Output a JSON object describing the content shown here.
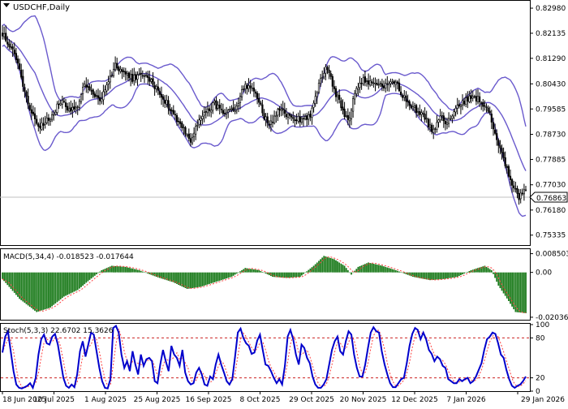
{
  "chart_data": [
    {
      "type": "candlestick",
      "title": "USDCHF,Daily",
      "symbol": "USDCHF",
      "timeframe": "Daily",
      "current_price": "0.76863",
      "ylim": [
        0.75,
        0.832
      ],
      "y_ticks": [
        "0.82980",
        "0.82135",
        "0.81290",
        "0.80430",
        "0.79585",
        "0.78730",
        "0.77885",
        "0.77030",
        "0.76180",
        "0.75335"
      ],
      "x_ticks": [
        "18 Jun 2025",
        "10 Jul 2025",
        "1 Aug 2025",
        "25 Aug 2025",
        "16 Sep 2025",
        "8 Oct 2025",
        "29 Oct 2025",
        "20 Nov 2025",
        "12 Dec 2025",
        "7 Jan 2026",
        "29 Jan 2026"
      ],
      "close_path": [
        [
          0,
          0.8215
        ],
        [
          8,
          0.813
        ],
        [
          16,
          0.796
        ],
        [
          22,
          0.7895
        ],
        [
          28,
          0.793
        ],
        [
          34,
          0.7985
        ],
        [
          40,
          0.7955
        ],
        [
          44,
          0.7975
        ],
        [
          48,
          0.804
        ],
        [
          52,
          0.801
        ],
        [
          58,
          0.799
        ],
        [
          62,
          0.8055
        ],
        [
          66,
          0.8105
        ],
        [
          70,
          0.8085
        ],
        [
          76,
          0.806
        ],
        [
          82,
          0.8075
        ],
        [
          88,
          0.8045
        ],
        [
          94,
          0.7995
        ],
        [
          100,
          0.7945
        ],
        [
          106,
          0.789
        ],
        [
          110,
          0.785
        ],
        [
          114,
          0.7905
        ],
        [
          118,
          0.7945
        ],
        [
          124,
          0.7975
        ],
        [
          130,
          0.7935
        ],
        [
          136,
          0.796
        ],
        [
          142,
          0.804
        ],
        [
          148,
          0.802
        ],
        [
          152,
          0.7945
        ],
        [
          156,
          0.7905
        ],
        [
          162,
          0.7955
        ],
        [
          168,
          0.793
        ],
        [
          174,
          0.7925
        ],
        [
          180,
          0.7935
        ],
        [
          186,
          0.806
        ],
        [
          190,
          0.81
        ],
        [
          194,
          0.8025
        ],
        [
          198,
          0.7965
        ],
        [
          202,
          0.7915
        ],
        [
          206,
          0.801
        ],
        [
          210,
          0.8055
        ],
        [
          216,
          0.8045
        ],
        [
          222,
          0.8035
        ],
        [
          226,
          0.804
        ],
        [
          230,
          0.8045
        ],
        [
          234,
          0.8005
        ],
        [
          240,
          0.7965
        ],
        [
          246,
          0.7935
        ],
        [
          252,
          0.788
        ],
        [
          256,
          0.7935
        ],
        [
          260,
          0.7905
        ],
        [
          264,
          0.795
        ],
        [
          270,
          0.7985
        ],
        [
          274,
          0.7995
        ],
        [
          278,
          0.7995
        ],
        [
          284,
          0.7955
        ],
        [
          290,
          0.7835
        ],
        [
          294,
          0.777
        ],
        [
          298,
          0.77
        ],
        [
          302,
          0.766
        ],
        [
          306,
          0.7686
        ]
      ],
      "bollinger": {
        "period": 20,
        "deviations": 2
      },
      "series": []
    },
    {
      "type": "histogram",
      "indicator": "MACD",
      "label": "MACD(5,34,4) -0.018523 -0.017644",
      "ylim": [
        -0.0215,
        0.0102
      ],
      "y_ticks": [
        "0.008503",
        "0.00",
        "-0.020366"
      ],
      "macd_path": [
        [
          0,
          -0.003
        ],
        [
          10,
          -0.012
        ],
        [
          20,
          -0.018
        ],
        [
          28,
          -0.016
        ],
        [
          36,
          -0.011
        ],
        [
          44,
          -0.008
        ],
        [
          50,
          -0.004
        ],
        [
          58,
          0.001
        ],
        [
          64,
          0.003
        ],
        [
          72,
          0.0025
        ],
        [
          80,
          0.001
        ],
        [
          90,
          -0.002
        ],
        [
          100,
          -0.0045
        ],
        [
          108,
          -0.0075
        ],
        [
          116,
          -0.0065
        ],
        [
          126,
          -0.004
        ],
        [
          134,
          -0.002
        ],
        [
          142,
          0.002
        ],
        [
          150,
          0.001
        ],
        [
          158,
          -0.002
        ],
        [
          166,
          -0.0025
        ],
        [
          174,
          -0.002
        ],
        [
          182,
          0.003
        ],
        [
          188,
          0.0075
        ],
        [
          194,
          0.006
        ],
        [
          200,
          0.003
        ],
        [
          204,
          -0.001
        ],
        [
          208,
          0.0025
        ],
        [
          214,
          0.0045
        ],
        [
          222,
          0.003
        ],
        [
          230,
          0.001
        ],
        [
          240,
          -0.002
        ],
        [
          250,
          -0.0035
        ],
        [
          258,
          -0.003
        ],
        [
          266,
          -0.002
        ],
        [
          274,
          0.001
        ],
        [
          282,
          0.003
        ],
        [
          286,
          0.001
        ],
        [
          290,
          -0.006
        ],
        [
          296,
          -0.013
        ],
        [
          300,
          -0.018
        ],
        [
          306,
          -0.0185
        ]
      ],
      "signal_lag": 2
    },
    {
      "type": "line",
      "indicator": "Stochastic",
      "label": "Stoch(5,3,3) 22.6702 15.3626",
      "ylim": [
        0,
        100
      ],
      "y_ticks": [
        "100",
        "80",
        "20",
        "0"
      ],
      "levels": [
        80,
        20
      ],
      "series": [
        {
          "values": [
            58,
            82,
            90,
            60,
            30,
            10,
            5,
            4,
            6,
            8,
            12,
            5,
            20,
            55,
            78,
            85,
            72,
            70,
            82,
            86,
            70,
            45,
            20,
            8,
            5,
            10,
            6,
            25,
            60,
            75,
            52,
            70,
            88,
            85,
            60,
            35,
            15,
            5,
            4,
            18,
            95,
            98,
            88,
            55,
            35,
            45,
            30,
            60,
            40,
            25,
            55,
            38,
            48,
            50,
            45,
            15,
            12,
            40,
            62,
            45,
            30,
            68,
            55,
            50,
            38,
            62,
            28,
            15,
            10,
            12,
            28,
            35,
            25,
            10,
            8,
            22,
            18,
            40,
            55,
            40,
            28,
            15,
            10,
            18,
            52,
            88,
            94,
            80,
            72,
            68,
            56,
            58,
            76,
            85,
            62,
            40,
            38,
            30,
            20,
            12,
            18,
            10,
            38,
            82,
            92,
            78,
            55,
            40,
            70,
            65,
            50,
            42,
            22,
            10,
            5,
            5,
            10,
            18,
            40,
            62,
            75,
            82,
            60,
            55,
            75,
            90,
            85,
            55,
            35,
            22,
            22,
            40,
            65,
            88,
            96,
            90,
            88,
            60,
            40,
            25,
            12,
            6,
            6,
            12,
            18,
            20,
            42,
            68,
            86,
            95,
            92,
            78,
            88,
            78,
            62,
            56,
            45,
            52,
            48,
            38,
            35,
            18,
            15,
            12,
            12,
            18,
            15,
            18,
            20,
            12,
            15,
            22,
            32,
            42,
            62,
            78,
            82,
            88,
            86,
            72,
            55,
            50,
            32,
            18,
            8,
            5,
            8,
            10,
            15,
            22
          ]
        }
      ]
    }
  ]
}
